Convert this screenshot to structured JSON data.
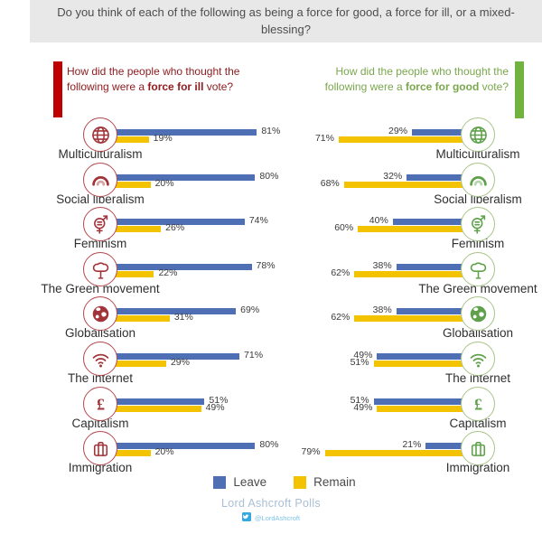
{
  "title": "Do you think of each of the following as being a force for good, a force for ill, or a mixed-blessing?",
  "panels": {
    "ill": {
      "heading_prefix": "How did the people who thought the following were a ",
      "heading_bold": "force for ill",
      "heading_suffix": " vote?"
    },
    "good": {
      "heading_prefix": "How did the people who thought the following were a ",
      "heading_bold": "force for good",
      "heading_suffix": " vote?"
    }
  },
  "colors": {
    "leave": "#4F6FB5",
    "remain": "#F3C300",
    "ill_accent": "#C00000",
    "ill_text": "#8F1D21",
    "ill_icon": "#A23338",
    "ill_circle": "#B4494E",
    "good_accent": "#71B240",
    "good_text": "#7AA74D",
    "good_icon": "#5EA14A",
    "good_circle": "#A9C489",
    "title_bg": "#E9E8E8",
    "title_text": "#4D4D4D",
    "source_text": "#A9BFD4",
    "twitter_blue": "#35A9E0"
  },
  "chart_data": {
    "type": "bar",
    "orientation": "horizontal",
    "unit": "%",
    "xlim": [
      0,
      100
    ],
    "grid": false,
    "legend_position": "bottom",
    "categories": [
      "Multiculturalism",
      "Social liberalism",
      "Feminism",
      "The Green movement",
      "Globalisation",
      "The internet",
      "Capitalism",
      "Immigration"
    ],
    "icons": [
      "globe",
      "rainbow",
      "gender-equality",
      "tree",
      "globe-solid",
      "wifi",
      "pound-sign",
      "suitcase"
    ],
    "panels": [
      {
        "name": "force for ill",
        "side": "left",
        "series": [
          {
            "name": "Leave",
            "values": [
              81,
              80,
              74,
              78,
              69,
              71,
              51,
              80
            ]
          },
          {
            "name": "Remain",
            "values": [
              19,
              20,
              26,
              22,
              31,
              29,
              49,
              20
            ]
          }
        ]
      },
      {
        "name": "force for good",
        "side": "right",
        "series": [
          {
            "name": "Leave",
            "values": [
              29,
              32,
              40,
              38,
              38,
              49,
              51,
              21
            ]
          },
          {
            "name": "Remain",
            "values": [
              71,
              68,
              60,
              62,
              62,
              51,
              49,
              79
            ]
          }
        ]
      }
    ]
  },
  "legend": [
    {
      "label": "Leave",
      "color": "#4F6FB5"
    },
    {
      "label": "Remain",
      "color": "#F3C300"
    }
  ],
  "footer": {
    "source": "Lord Ashcroft Polls",
    "twitter": "@LordAshcroft"
  }
}
